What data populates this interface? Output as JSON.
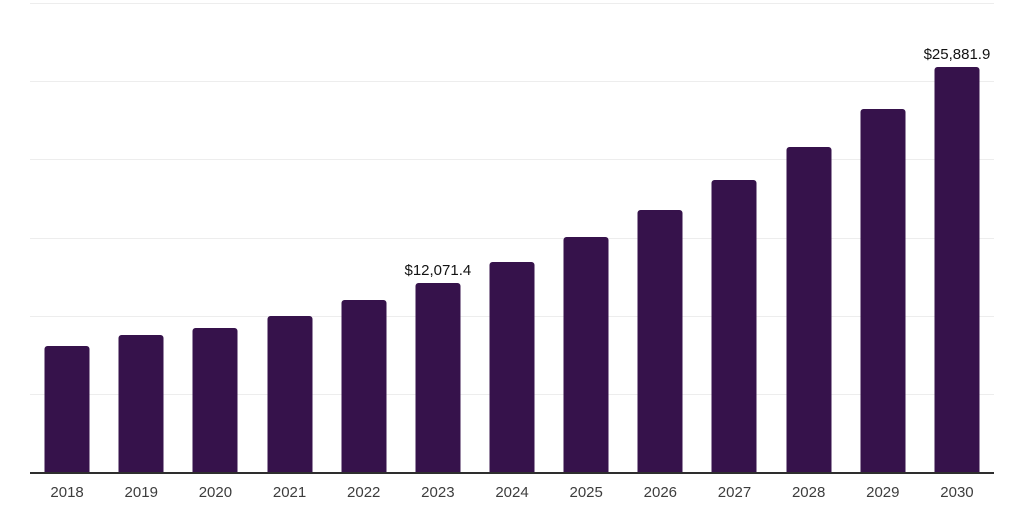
{
  "chart_data": {
    "type": "bar",
    "title": "",
    "xlabel": "",
    "ylabel": "",
    "categories": [
      "2018",
      "2019",
      "2020",
      "2021",
      "2022",
      "2023",
      "2024",
      "2025",
      "2026",
      "2027",
      "2028",
      "2029",
      "2030"
    ],
    "values": [
      8090,
      8760,
      9210,
      9980,
      11000,
      12071.4,
      13460,
      15010,
      16740,
      18660,
      20800,
      23200,
      25881.9
    ],
    "data_labels": [
      "",
      "",
      "",
      "",
      "",
      "$12,071.4",
      "",
      "",
      "",
      "",
      "",
      "",
      "$25,881.9"
    ],
    "ylim": [
      0,
      30000
    ],
    "gridline_interval": 5000,
    "grid": "horizontal-only",
    "legend_position": "none",
    "y_tick_labels_visible": false,
    "colors": {
      "bar": "#36124B",
      "gridline": "#ededed",
      "axis_line": "#2e2e2e",
      "tick_label": "#3d3d3d",
      "data_label": "#121212",
      "background": "#ffffff"
    }
  }
}
